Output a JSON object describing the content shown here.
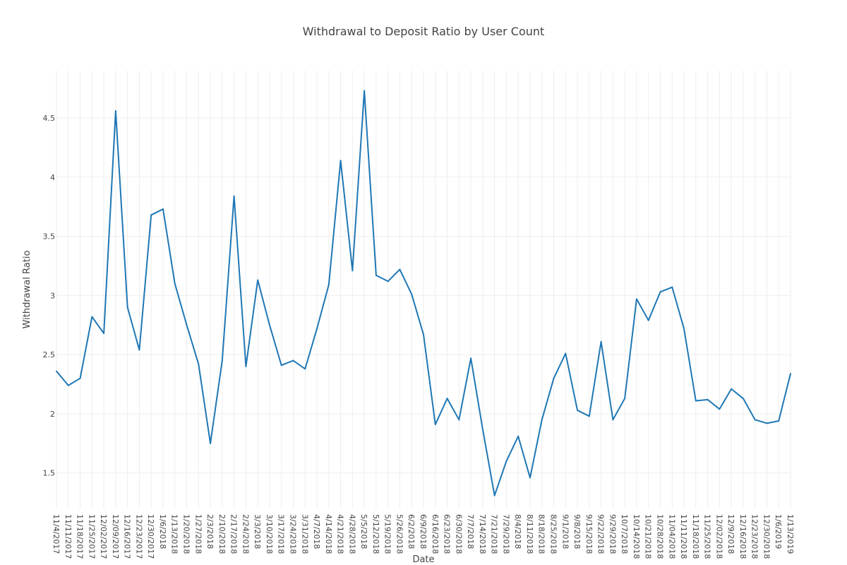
{
  "chart_data": {
    "type": "line",
    "title": "Withdrawal to Deposit Ratio by User Count",
    "xlabel": "Date",
    "ylabel": "Withdrawal Ratio",
    "ylim": [
      1.2,
      4.9
    ],
    "yticks": [
      1.5,
      2,
      2.5,
      3,
      3.5,
      4,
      4.5
    ],
    "ytick_labels": [
      "1.5",
      "2",
      "2.5",
      "3",
      "3.5",
      "4",
      "4.5"
    ],
    "grid": true,
    "line_color": "#1f77b4",
    "categories": [
      "11/4/2017",
      "11/11/2017",
      "11/18/2017",
      "11/25/2017",
      "12/02/2017",
      "12/09/2017",
      "12/16/2017",
      "12/23/2017",
      "12/30/2017",
      "1/6/2018",
      "1/13/2018",
      "1/20/2018",
      "1/27/2018",
      "2/3/2018",
      "2/10/2018",
      "2/17/2018",
      "2/24/2018",
      "3/3/2018",
      "3/10/2018",
      "3/17/2018",
      "3/24/2018",
      "3/31/2018",
      "4/7/2018",
      "4/14/2018",
      "4/21/2018",
      "4/28/2018",
      "5/5/2018",
      "5/12/2018",
      "5/19/2018",
      "5/26/2018",
      "6/2/2018",
      "6/9/2018",
      "6/16/2018",
      "6/23/2018",
      "6/30/2018",
      "7/7/2018",
      "7/14/2018",
      "7/21/2018",
      "7/29/2018",
      "8/4/2018",
      "8/11/2018",
      "8/18/2018",
      "8/25/2018",
      "9/1/2018",
      "9/8/2018",
      "9/15/2018",
      "9/22/2018",
      "9/29/2018",
      "10/7/2018",
      "10/14/2018",
      "10/21/2018",
      "10/28/2018",
      "11/04/2018",
      "11/11/2018",
      "11/18/2018",
      "11/25/2018",
      "12/02/2018",
      "12/9/2018",
      "12/16/2018",
      "12/23/2018",
      "12/30/2018",
      "1/6/2019",
      "1/13/2019"
    ],
    "series": [
      {
        "values": [
          2.36,
          2.24,
          2.3,
          2.82,
          2.68,
          4.56,
          2.9,
          2.54,
          3.68,
          3.73,
          3.1,
          2.75,
          2.42,
          1.75,
          2.45,
          3.84,
          2.4,
          3.13,
          2.75,
          2.41,
          2.45,
          2.38,
          2.72,
          3.09,
          4.14,
          3.21,
          4.73,
          3.17,
          3.12,
          3.22,
          3.01,
          2.67,
          1.91,
          2.13,
          1.95,
          2.47,
          1.87,
          1.31,
          1.6,
          1.81,
          1.46,
          1.95,
          2.3,
          2.51,
          2.03,
          1.98,
          2.61,
          1.95,
          2.13,
          2.97,
          2.79,
          3.03,
          3.07,
          2.72,
          2.11,
          2.12,
          2.04,
          2.21,
          2.13,
          1.95,
          1.92,
          1.94,
          2.34
        ]
      }
    ]
  }
}
